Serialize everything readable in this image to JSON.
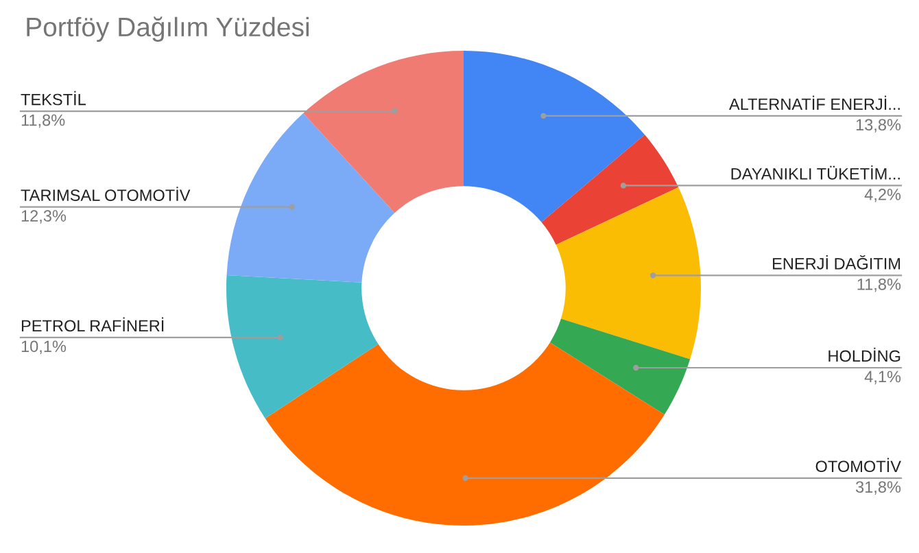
{
  "chart_data": {
    "type": "donut",
    "title": "Portföy Dağılım Yüzdesi",
    "categories": [
      "ALTERNATİF ENERJİ...",
      "DAYANIKLI TÜKETİM...",
      "ENERJİ DAĞITIM",
      "HOLDİNG",
      "OTOMOTİV",
      "PETROL RAFİNERİ",
      "TARIMSAL OTOMOTİV",
      "TEKSTİL"
    ],
    "values": [
      13.8,
      4.2,
      11.8,
      4.1,
      31.8,
      10.1,
      12.3,
      11.8
    ],
    "value_labels": [
      "13,8%",
      "4,2%",
      "11,8%",
      "4,1%",
      "31,8%",
      "10,1%",
      "12,3%",
      "11,8%"
    ],
    "colors": [
      "#4285f4",
      "#ea4335",
      "#fbbc04",
      "#34a853",
      "#ff6d01",
      "#46bdc6",
      "#7baaf7",
      "#f07b72"
    ]
  }
}
